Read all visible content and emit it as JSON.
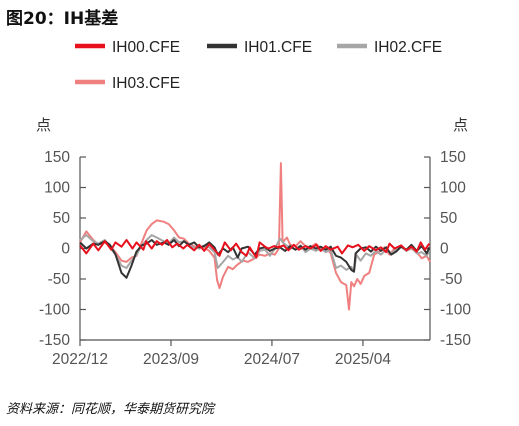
{
  "figure": {
    "title": "图20：IH基差",
    "source": "资料来源：同花顺，华泰期货研究院"
  },
  "chart_data": {
    "type": "line",
    "title": "",
    "y_unit_left": "点",
    "y_unit_right": "点",
    "ylim": [
      -150,
      150
    ],
    "yticks": [
      150,
      100,
      50,
      0,
      -50,
      -100,
      -150
    ],
    "xlim": [
      "2022-12-01",
      "2025-10-20"
    ],
    "xticks": [
      {
        "date": "2022-12-01",
        "label": "2022/12"
      },
      {
        "date": "2023-09-01",
        "label": "2023/09"
      },
      {
        "date": "2024-07-01",
        "label": "2024/07"
      },
      {
        "date": "2025-04-01",
        "label": "2025/04"
      }
    ],
    "grid": false,
    "legend_position": "top",
    "series": [
      {
        "name": "IH00.CFE",
        "color": "#e8101d",
        "points": [
          [
            "2022-12-01",
            5
          ],
          [
            "2022-12-20",
            -8
          ],
          [
            "2023-01-10",
            8
          ],
          [
            "2023-01-25",
            -3
          ],
          [
            "2023-02-14",
            12
          ],
          [
            "2023-03-05",
            -2
          ],
          [
            "2023-03-18",
            10
          ],
          [
            "2023-04-05",
            3
          ],
          [
            "2023-04-20",
            14
          ],
          [
            "2023-05-08",
            0
          ],
          [
            "2023-05-20",
            10
          ],
          [
            "2023-06-10",
            -2
          ],
          [
            "2023-06-18",
            12
          ],
          [
            "2023-07-05",
            0
          ],
          [
            "2023-07-20",
            12
          ],
          [
            "2023-08-05",
            6
          ],
          [
            "2023-08-20",
            14
          ],
          [
            "2023-09-05",
            2
          ],
          [
            "2023-09-20",
            8
          ],
          [
            "2023-10-08",
            0
          ],
          [
            "2023-10-20",
            6
          ],
          [
            "2023-11-10",
            -3
          ],
          [
            "2023-11-25",
            6
          ],
          [
            "2023-12-10",
            -4
          ],
          [
            "2023-12-25",
            7
          ],
          [
            "2024-01-10",
            -2
          ],
          [
            "2024-01-25",
            -12
          ],
          [
            "2024-02-10",
            10
          ],
          [
            "2024-02-28",
            -3
          ],
          [
            "2024-03-15",
            8
          ],
          [
            "2024-04-01",
            -6
          ],
          [
            "2024-04-15",
            -12
          ],
          [
            "2024-04-25",
            2
          ],
          [
            "2024-05-15",
            -15
          ],
          [
            "2024-05-25",
            10
          ],
          [
            "2024-06-10",
            3
          ],
          [
            "2024-06-20",
            0
          ],
          [
            "2024-07-08",
            4
          ],
          [
            "2024-07-20",
            2
          ],
          [
            "2024-08-05",
            5
          ],
          [
            "2024-08-20",
            -3
          ],
          [
            "2024-09-05",
            6
          ],
          [
            "2024-09-20",
            -2
          ],
          [
            "2024-10-10",
            4
          ],
          [
            "2024-10-25",
            0
          ],
          [
            "2024-11-12",
            6
          ],
          [
            "2024-11-25",
            -4
          ],
          [
            "2024-12-10",
            4
          ],
          [
            "2024-12-25",
            -2
          ],
          [
            "2025-01-15",
            3
          ],
          [
            "2025-01-28",
            -8
          ],
          [
            "2025-02-15",
            5
          ],
          [
            "2025-03-01",
            2
          ],
          [
            "2025-03-18",
            6
          ],
          [
            "2025-04-05",
            -4
          ],
          [
            "2025-04-20",
            4
          ],
          [
            "2025-05-10",
            -3
          ],
          [
            "2025-05-25",
            2
          ],
          [
            "2025-06-10",
            -6
          ],
          [
            "2025-06-20",
            8
          ],
          [
            "2025-07-05",
            0
          ],
          [
            "2025-07-25",
            5
          ],
          [
            "2025-08-10",
            -3
          ],
          [
            "2025-08-25",
            3
          ],
          [
            "2025-09-10",
            -5
          ],
          [
            "2025-09-22",
            10
          ],
          [
            "2025-10-05",
            -2
          ],
          [
            "2025-10-18",
            8
          ]
        ]
      },
      {
        "name": "IH01.CFE",
        "color": "#333333",
        "points": [
          [
            "2022-12-01",
            10
          ],
          [
            "2022-12-20",
            0
          ],
          [
            "2023-01-10",
            8
          ],
          [
            "2023-01-25",
            6
          ],
          [
            "2023-02-14",
            12
          ],
          [
            "2023-03-01",
            6
          ],
          [
            "2023-03-18",
            -10
          ],
          [
            "2023-04-05",
            -40
          ],
          [
            "2023-04-20",
            -48
          ],
          [
            "2023-05-05",
            -28
          ],
          [
            "2023-05-20",
            -5
          ],
          [
            "2023-06-05",
            5
          ],
          [
            "2023-06-20",
            8
          ],
          [
            "2023-07-05",
            14
          ],
          [
            "2023-07-20",
            6
          ],
          [
            "2023-08-10",
            10
          ],
          [
            "2023-08-25",
            6
          ],
          [
            "2023-09-10",
            14
          ],
          [
            "2023-09-25",
            4
          ],
          [
            "2023-10-10",
            12
          ],
          [
            "2023-10-25",
            6
          ],
          [
            "2023-11-10",
            10
          ],
          [
            "2023-11-25",
            2
          ],
          [
            "2023-12-10",
            4
          ],
          [
            "2023-12-25",
            10
          ],
          [
            "2024-01-10",
            2
          ],
          [
            "2024-01-20",
            -10
          ],
          [
            "2024-02-05",
            0
          ],
          [
            "2024-02-20",
            -6
          ],
          [
            "2024-03-05",
            2
          ],
          [
            "2024-03-20",
            -15
          ],
          [
            "2024-04-01",
            0
          ],
          [
            "2024-04-20",
            3
          ],
          [
            "2024-05-10",
            -10
          ],
          [
            "2024-05-25",
            0
          ],
          [
            "2024-06-10",
            2
          ],
          [
            "2024-06-25",
            -4
          ],
          [
            "2024-07-10",
            0
          ],
          [
            "2024-07-25",
            2
          ],
          [
            "2024-08-10",
            -4
          ],
          [
            "2024-08-25",
            4
          ],
          [
            "2024-09-10",
            -2
          ],
          [
            "2024-09-25",
            4
          ],
          [
            "2024-10-10",
            -2
          ],
          [
            "2024-10-25",
            4
          ],
          [
            "2024-11-10",
            0
          ],
          [
            "2024-11-25",
            3
          ],
          [
            "2024-12-10",
            -2
          ],
          [
            "2024-12-25",
            3
          ],
          [
            "2025-01-10",
            -12
          ],
          [
            "2025-01-25",
            -15
          ],
          [
            "2025-02-10",
            -22
          ],
          [
            "2025-02-25",
            -35
          ],
          [
            "2025-03-05",
            -38
          ],
          [
            "2025-03-10",
            -8
          ],
          [
            "2025-03-25",
            0
          ],
          [
            "2025-04-10",
            2
          ],
          [
            "2025-04-25",
            -5
          ],
          [
            "2025-05-10",
            3
          ],
          [
            "2025-05-25",
            -4
          ],
          [
            "2025-06-10",
            2
          ],
          [
            "2025-06-25",
            -10
          ],
          [
            "2025-07-10",
            -5
          ],
          [
            "2025-07-25",
            3
          ],
          [
            "2025-08-10",
            -2
          ],
          [
            "2025-08-25",
            6
          ],
          [
            "2025-09-10",
            -4
          ],
          [
            "2025-09-25",
            4
          ],
          [
            "2025-10-10",
            -8
          ],
          [
            "2025-10-18",
            2
          ]
        ]
      },
      {
        "name": "IH02.CFE",
        "color": "#a6a6a6",
        "points": [
          [
            "2022-12-01",
            14
          ],
          [
            "2022-12-20",
            22
          ],
          [
            "2023-01-10",
            12
          ],
          [
            "2023-01-25",
            8
          ],
          [
            "2023-02-14",
            14
          ],
          [
            "2023-03-01",
            2
          ],
          [
            "2023-03-18",
            -10
          ],
          [
            "2023-04-05",
            -28
          ],
          [
            "2023-04-20",
            -32
          ],
          [
            "2023-05-05",
            -20
          ],
          [
            "2023-05-20",
            -10
          ],
          [
            "2023-06-05",
            5
          ],
          [
            "2023-06-20",
            14
          ],
          [
            "2023-07-05",
            22
          ],
          [
            "2023-07-20",
            18
          ],
          [
            "2023-08-10",
            12
          ],
          [
            "2023-08-25",
            8
          ],
          [
            "2023-09-10",
            18
          ],
          [
            "2023-09-25",
            10
          ],
          [
            "2023-10-10",
            12
          ],
          [
            "2023-10-25",
            5
          ],
          [
            "2023-11-10",
            2
          ],
          [
            "2023-11-25",
            0
          ],
          [
            "2023-12-10",
            5
          ],
          [
            "2023-12-25",
            2
          ],
          [
            "2024-01-10",
            -6
          ],
          [
            "2024-01-20",
            -32
          ],
          [
            "2024-02-05",
            -22
          ],
          [
            "2024-02-20",
            -12
          ],
          [
            "2024-03-05",
            -18
          ],
          [
            "2024-03-20",
            -14
          ],
          [
            "2024-04-01",
            -22
          ],
          [
            "2024-04-20",
            -6
          ],
          [
            "2024-05-10",
            -16
          ],
          [
            "2024-05-25",
            -4
          ],
          [
            "2024-06-10",
            -2
          ],
          [
            "2024-06-25",
            -12
          ],
          [
            "2024-07-10",
            0
          ],
          [
            "2024-07-25",
            16
          ],
          [
            "2024-08-10",
            6
          ],
          [
            "2024-08-25",
            2
          ],
          [
            "2024-09-10",
            -2
          ],
          [
            "2024-09-25",
            5
          ],
          [
            "2024-10-10",
            -6
          ],
          [
            "2024-10-25",
            0
          ],
          [
            "2024-11-10",
            -4
          ],
          [
            "2024-11-25",
            0
          ],
          [
            "2024-12-10",
            -6
          ],
          [
            "2024-12-25",
            -2
          ],
          [
            "2025-01-10",
            -32
          ],
          [
            "2025-01-25",
            -28
          ],
          [
            "2025-02-10",
            -35
          ],
          [
            "2025-02-25",
            -30
          ],
          [
            "2025-03-05",
            -38
          ],
          [
            "2025-03-12",
            -10
          ],
          [
            "2025-03-25",
            -20
          ],
          [
            "2025-04-10",
            -8
          ],
          [
            "2025-04-25",
            -12
          ],
          [
            "2025-05-10",
            -4
          ],
          [
            "2025-05-25",
            -10
          ],
          [
            "2025-06-10",
            -2
          ],
          [
            "2025-06-25",
            -8
          ],
          [
            "2025-07-10",
            -2
          ],
          [
            "2025-07-25",
            3
          ],
          [
            "2025-08-10",
            -4
          ],
          [
            "2025-08-25",
            2
          ],
          [
            "2025-09-10",
            -8
          ],
          [
            "2025-09-25",
            -6
          ],
          [
            "2025-10-10",
            -12
          ],
          [
            "2025-10-18",
            -4
          ]
        ]
      },
      {
        "name": "IH03.CFE",
        "color": "#f08080",
        "points": [
          [
            "2022-12-01",
            10
          ],
          [
            "2022-12-20",
            28
          ],
          [
            "2023-01-10",
            14
          ],
          [
            "2023-01-25",
            6
          ],
          [
            "2023-02-14",
            10
          ],
          [
            "2023-03-01",
            4
          ],
          [
            "2023-03-18",
            -6
          ],
          [
            "2023-04-05",
            -20
          ],
          [
            "2023-04-20",
            -22
          ],
          [
            "2023-05-05",
            -15
          ],
          [
            "2023-05-20",
            -12
          ],
          [
            "2023-06-05",
            10
          ],
          [
            "2023-06-20",
            30
          ],
          [
            "2023-07-05",
            40
          ],
          [
            "2023-07-20",
            46
          ],
          [
            "2023-08-10",
            44
          ],
          [
            "2023-08-25",
            40
          ],
          [
            "2023-09-10",
            30
          ],
          [
            "2023-09-25",
            18
          ],
          [
            "2023-10-10",
            16
          ],
          [
            "2023-10-25",
            8
          ],
          [
            "2023-11-10",
            4
          ],
          [
            "2023-11-25",
            0
          ],
          [
            "2023-12-10",
            2
          ],
          [
            "2023-12-25",
            -4
          ],
          [
            "2024-01-10",
            -15
          ],
          [
            "2024-01-18",
            -52
          ],
          [
            "2024-01-25",
            -65
          ],
          [
            "2024-02-05",
            -46
          ],
          [
            "2024-02-20",
            -30
          ],
          [
            "2024-03-05",
            -34
          ],
          [
            "2024-03-20",
            -26
          ],
          [
            "2024-04-05",
            -20
          ],
          [
            "2024-04-20",
            -22
          ],
          [
            "2024-05-10",
            -16
          ],
          [
            "2024-05-25",
            -10
          ],
          [
            "2024-06-10",
            -12
          ],
          [
            "2024-06-25",
            -8
          ],
          [
            "2024-07-10",
            -10
          ],
          [
            "2024-07-22",
            0
          ],
          [
            "2024-07-28",
            140
          ],
          [
            "2024-08-02",
            10
          ],
          [
            "2024-08-15",
            18
          ],
          [
            "2024-08-25",
            6
          ],
          [
            "2024-09-10",
            4
          ],
          [
            "2024-09-25",
            12
          ],
          [
            "2024-10-10",
            4
          ],
          [
            "2024-10-25",
            2
          ],
          [
            "2024-11-10",
            8
          ],
          [
            "2024-11-25",
            0
          ],
          [
            "2024-12-10",
            2
          ],
          [
            "2024-12-25",
            -8
          ],
          [
            "2025-01-10",
            -40
          ],
          [
            "2025-01-25",
            -55
          ],
          [
            "2025-02-10",
            -60
          ],
          [
            "2025-02-18",
            -100
          ],
          [
            "2025-02-25",
            -55
          ],
          [
            "2025-03-05",
            -62
          ],
          [
            "2025-03-15",
            -50
          ],
          [
            "2025-03-25",
            -58
          ],
          [
            "2025-04-05",
            -45
          ],
          [
            "2025-04-20",
            -40
          ],
          [
            "2025-05-05",
            -10
          ],
          [
            "2025-05-20",
            -5
          ],
          [
            "2025-06-05",
            2
          ],
          [
            "2025-06-20",
            -10
          ],
          [
            "2025-07-05",
            0
          ],
          [
            "2025-07-25",
            4
          ],
          [
            "2025-08-10",
            -4
          ],
          [
            "2025-08-25",
            0
          ],
          [
            "2025-09-10",
            -6
          ],
          [
            "2025-09-25",
            -16
          ],
          [
            "2025-10-10",
            -12
          ],
          [
            "2025-10-20",
            -22
          ]
        ]
      }
    ]
  }
}
